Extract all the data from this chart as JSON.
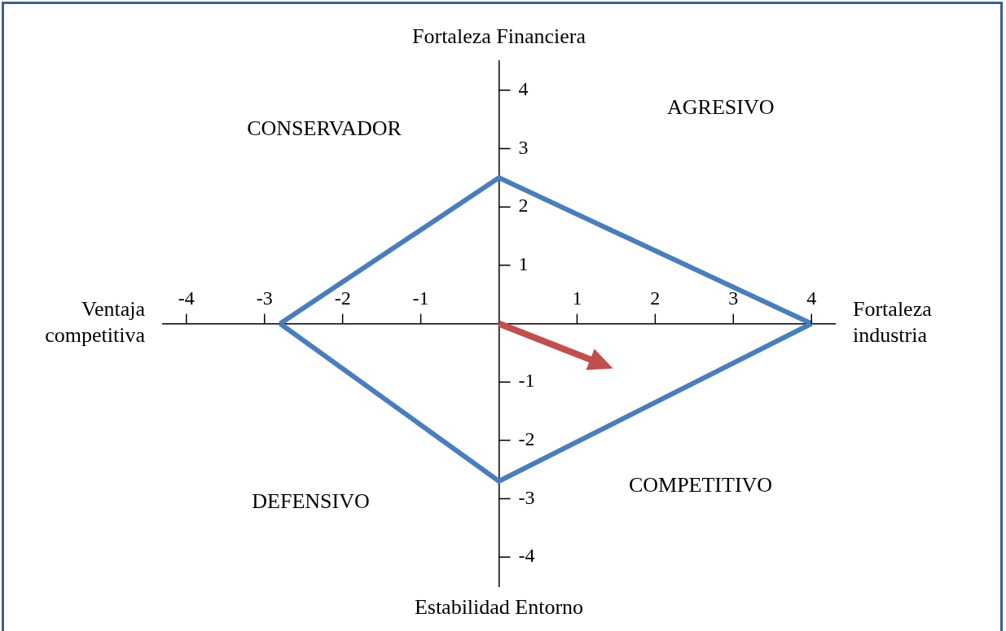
{
  "chart_data": {
    "type": "line",
    "xlabel": "Fortaleza industria",
    "ylabel": "Fortaleza Financiera",
    "xlim": [
      -4.3,
      4.3
    ],
    "ylim": [
      -4.5,
      4.5
    ],
    "xticks": [
      -4,
      -3,
      -2,
      -1,
      1,
      2,
      3,
      4
    ],
    "yticks": [
      -4,
      -3,
      -2,
      -1,
      1,
      2,
      3,
      4
    ],
    "grid": false,
    "legend": false,
    "marker": "none",
    "series": [
      {
        "color": "#4a7ebb",
        "x": [
          -2.8,
          0,
          4
        ],
        "values": [
          0,
          2.5,
          0
        ]
      },
      {
        "color": "#4a7ebb",
        "x": [
          -2.8,
          0,
          4
        ],
        "values": [
          0,
          -2.7,
          0
        ]
      }
    ],
    "annotations": [
      "Ventaja competitiva",
      "Estabilidad Entorno",
      "CONSERVADOR",
      "AGRESIVO",
      "DEFENSIVO",
      "COMPETITIVO"
    ]
  }
}
